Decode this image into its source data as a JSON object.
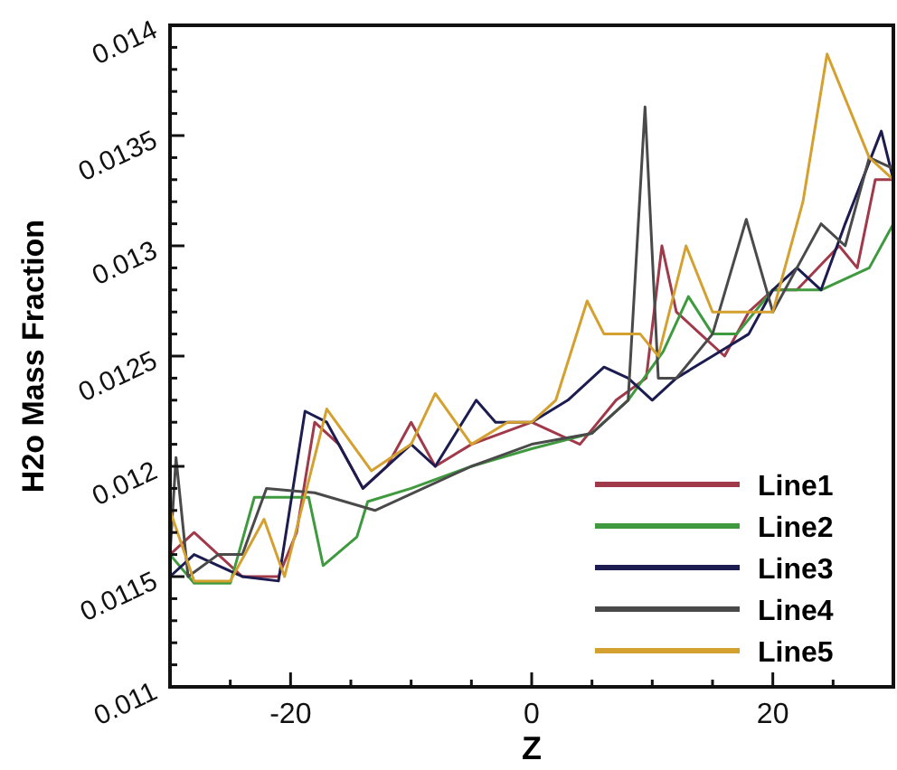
{
  "chart_data": {
    "type": "line",
    "xlabel": "Z",
    "ylabel": "H2o Mass Fraction",
    "xlim": [
      -30,
      30
    ],
    "ylim": [
      0.011,
      0.014
    ],
    "xticks": [
      {
        "value": -25,
        "label": null
      },
      -20,
      {
        "value": -15,
        "label": null
      },
      {
        "value": -10,
        "label": null
      },
      {
        "value": -5,
        "label": null
      },
      0,
      {
        "value": 5,
        "label": null
      },
      {
        "value": 10,
        "label": null
      },
      {
        "value": 15,
        "label": null
      },
      20,
      {
        "value": 25,
        "label": null
      }
    ],
    "yticks": [
      0.011,
      {
        "value": 0.0111,
        "label": null
      },
      {
        "value": 0.0112,
        "label": null
      },
      {
        "value": 0.0113,
        "label": null
      },
      {
        "value": 0.0114,
        "label": null
      },
      0.0115,
      {
        "value": 0.0116,
        "label": null
      },
      {
        "value": 0.0117,
        "label": null
      },
      {
        "value": 0.0118,
        "label": null
      },
      {
        "value": 0.0119,
        "label": null
      },
      0.012,
      {
        "value": 0.0121,
        "label": null
      },
      {
        "value": 0.0122,
        "label": null
      },
      {
        "value": 0.0123,
        "label": null
      },
      {
        "value": 0.0124,
        "label": null
      },
      0.0125,
      {
        "value": 0.0126,
        "label": null
      },
      {
        "value": 0.0127,
        "label": null
      },
      {
        "value": 0.0128,
        "label": null
      },
      {
        "value": 0.0129,
        "label": null
      },
      0.013,
      {
        "value": 0.0131,
        "label": null
      },
      {
        "value": 0.0132,
        "label": null
      },
      {
        "value": 0.0133,
        "label": null
      },
      {
        "value": 0.0134,
        "label": null
      },
      0.0135,
      {
        "value": 0.0136,
        "label": null
      },
      {
        "value": 0.0137,
        "label": null
      },
      {
        "value": 0.0138,
        "label": null
      },
      {
        "value": 0.0139,
        "label": null
      },
      0.014
    ],
    "grid": false,
    "legend": "bottom right",
    "marker": "none",
    "line_style": "solid",
    "series": [
      {
        "name": "Line1",
        "color": "#a03a4a",
        "x": [
          -30,
          -28,
          -26,
          -24,
          -21,
          -19.5,
          -18,
          -16,
          -14,
          -12,
          -10,
          -8,
          -5,
          0,
          4,
          7,
          9.5,
          10.8,
          12,
          14,
          16,
          18,
          20,
          22,
          25.5,
          27,
          28.5,
          30
        ],
        "values": [
          0.0116,
          0.0117,
          0.0116,
          0.0115,
          0.0115,
          0.0117,
          0.0122,
          0.0121,
          0.0119,
          0.012,
          0.0122,
          0.012,
          0.0121,
          0.0122,
          0.0121,
          0.0123,
          0.0124,
          0.013,
          0.0127,
          0.0126,
          0.0125,
          0.0127,
          0.0128,
          0.0128,
          0.013,
          0.0129,
          0.0133,
          0.0133
        ]
      },
      {
        "name": "Line2",
        "color": "#3f9a3f",
        "x": [
          -30,
          -28,
          -25,
          -23,
          -21,
          -18.5,
          -17.3,
          -14.5,
          -13.6,
          -10,
          -5,
          0,
          5,
          8,
          10.9,
          13,
          15,
          17,
          20,
          24,
          28,
          30
        ],
        "values": [
          0.0116,
          0.01147,
          0.01147,
          0.01186,
          0.01186,
          0.01186,
          0.01155,
          0.01168,
          0.01184,
          0.0119,
          0.012,
          0.01208,
          0.01215,
          0.0123,
          0.01252,
          0.01277,
          0.0126,
          0.0126,
          0.0128,
          0.0128,
          0.0129,
          0.0131
        ]
      },
      {
        "name": "Line3",
        "color": "#1c1c50",
        "x": [
          -30,
          -28,
          -26,
          -24,
          -21,
          -18.8,
          -17,
          -14,
          -10,
          -8,
          -4.6,
          -3,
          0,
          3,
          6,
          8,
          10,
          12,
          15,
          18,
          20,
          22,
          24,
          26,
          29,
          30
        ],
        "values": [
          0.0115,
          0.0116,
          0.01155,
          0.0115,
          0.01148,
          0.01225,
          0.0122,
          0.0119,
          0.0121,
          0.012,
          0.0123,
          0.0122,
          0.0122,
          0.0123,
          0.01245,
          0.0124,
          0.0123,
          0.0124,
          0.0125,
          0.0126,
          0.0128,
          0.0129,
          0.0128,
          0.0131,
          0.01352,
          0.0133
        ]
      },
      {
        "name": "Line4",
        "color": "#4a4a4a",
        "x": [
          -30,
          -29.5,
          -28.5,
          -26,
          -24,
          -22,
          -18,
          -13,
          -5,
          0,
          5,
          8,
          9.4,
          10.5,
          12,
          15,
          17.8,
          20,
          22,
          24,
          26,
          28,
          30
        ],
        "values": [
          0.0116,
          0.01204,
          0.0115,
          0.0116,
          0.0116,
          0.0119,
          0.01188,
          0.0118,
          0.012,
          0.0121,
          0.01215,
          0.0123,
          0.01363,
          0.0124,
          0.0124,
          0.0126,
          0.01312,
          0.0127,
          0.0129,
          0.0131,
          0.013,
          0.0134,
          0.01335
        ]
      },
      {
        "name": "Line5",
        "color": "#d4a030",
        "x": [
          -30,
          -28,
          -25,
          -22.2,
          -20.5,
          -17,
          -13.3,
          -10,
          -8,
          -5,
          -2,
          0,
          2,
          4.6,
          6,
          9,
          10.5,
          12.8,
          15,
          20,
          22.5,
          24.5,
          28,
          30
        ],
        "values": [
          0.0118,
          0.01148,
          0.01148,
          0.01176,
          0.0115,
          0.01226,
          0.01198,
          0.0121,
          0.01233,
          0.0121,
          0.0122,
          0.0122,
          0.0123,
          0.01275,
          0.0126,
          0.0126,
          0.0125,
          0.013,
          0.0127,
          0.0127,
          0.0132,
          0.01387,
          0.0134,
          0.0133
        ]
      }
    ]
  }
}
